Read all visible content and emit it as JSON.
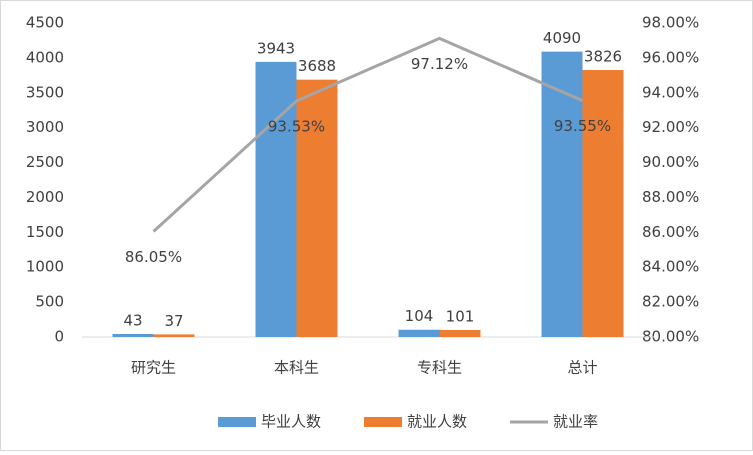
{
  "chart_data": {
    "type": "bar-line",
    "categories": [
      "研究生",
      "本科生",
      "专科生",
      "总计"
    ],
    "series": [
      {
        "name": "毕业人数",
        "color": "#5b9bd5",
        "type": "bar",
        "values": [
          43,
          3943,
          104,
          4090
        ]
      },
      {
        "name": "就业人数",
        "color": "#ed7d31",
        "type": "bar",
        "values": [
          37,
          3688,
          101,
          3826
        ]
      },
      {
        "name": "就业率",
        "color": "#a5a5a5",
        "type": "line",
        "axis": "y2",
        "values": [
          86.05,
          93.53,
          97.12,
          93.55
        ],
        "value_labels": [
          "86.05%",
          "93.53%",
          "97.12%",
          "93.55%"
        ]
      }
    ],
    "ylim": [
      0,
      4500
    ],
    "yticks": [
      0,
      500,
      1000,
      1500,
      2000,
      2500,
      3000,
      3500,
      4000,
      4500
    ],
    "y2lim": [
      80,
      98
    ],
    "y2ticks": [
      {
        "value": 80,
        "label": "80.00%"
      },
      {
        "value": 82,
        "label": "82.00%"
      },
      {
        "value": 84,
        "label": "84.00%"
      },
      {
        "value": 86,
        "label": "86.00%"
      },
      {
        "value": 88,
        "label": "88.00%"
      },
      {
        "value": 90,
        "label": "90.00%"
      },
      {
        "value": 92,
        "label": "92.00%"
      },
      {
        "value": 94,
        "label": "94.00%"
      },
      {
        "value": 96,
        "label": "96.00%"
      },
      {
        "value": 98,
        "label": "98.00%"
      }
    ],
    "legend": "bottom",
    "grid": false
  }
}
